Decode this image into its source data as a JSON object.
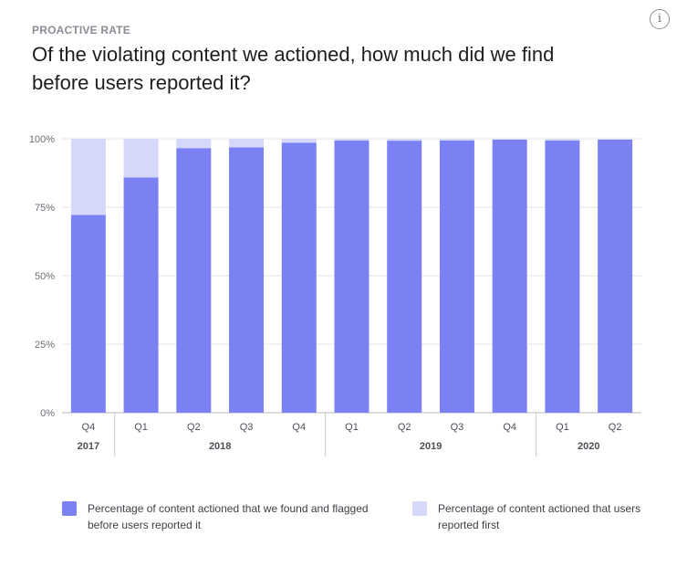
{
  "header": {
    "eyebrow": "PROACTIVE RATE",
    "title": "Of the violating content we actioned, how much did we find before users reported it?",
    "info_icon": "info-icon",
    "info_glyph": "i"
  },
  "chart_data": {
    "type": "bar",
    "stacked": true,
    "categories": [
      "Q4",
      "Q1",
      "Q2",
      "Q3",
      "Q4",
      "Q1",
      "Q2",
      "Q3",
      "Q4",
      "Q1",
      "Q2"
    ],
    "years": [
      {
        "label": "2017",
        "start": 0,
        "end": 0
      },
      {
        "label": "2018",
        "start": 1,
        "end": 4
      },
      {
        "label": "2019",
        "start": 5,
        "end": 8
      },
      {
        "label": "2020",
        "start": 9,
        "end": 10
      }
    ],
    "series": [
      {
        "name": "Percentage of content actioned that we found and flagged before users reported it",
        "color": "#7b80f3",
        "values": [
          72.2,
          85.9,
          96.6,
          96.9,
          98.6,
          99.4,
          99.3,
          99.4,
          99.7,
          99.4,
          99.7
        ]
      },
      {
        "name": "Percentage of content actioned that users reported first",
        "color": "#d6d8fb",
        "values": [
          27.8,
          14.1,
          3.4,
          3.1,
          1.4,
          0.6,
          0.7,
          0.6,
          0.3,
          0.6,
          0.3
        ]
      }
    ],
    "yticks": [
      "0%",
      "25%",
      "50%",
      "75%",
      "100%"
    ],
    "ylim": [
      0,
      100
    ],
    "legend_position": "bottom"
  },
  "legend": [
    {
      "label": "Percentage of content actioned that we found and flagged before users reported it",
      "color": "#7b80f3"
    },
    {
      "label": "Percentage of content actioned that users reported first",
      "color": "#d6d8fb"
    }
  ]
}
